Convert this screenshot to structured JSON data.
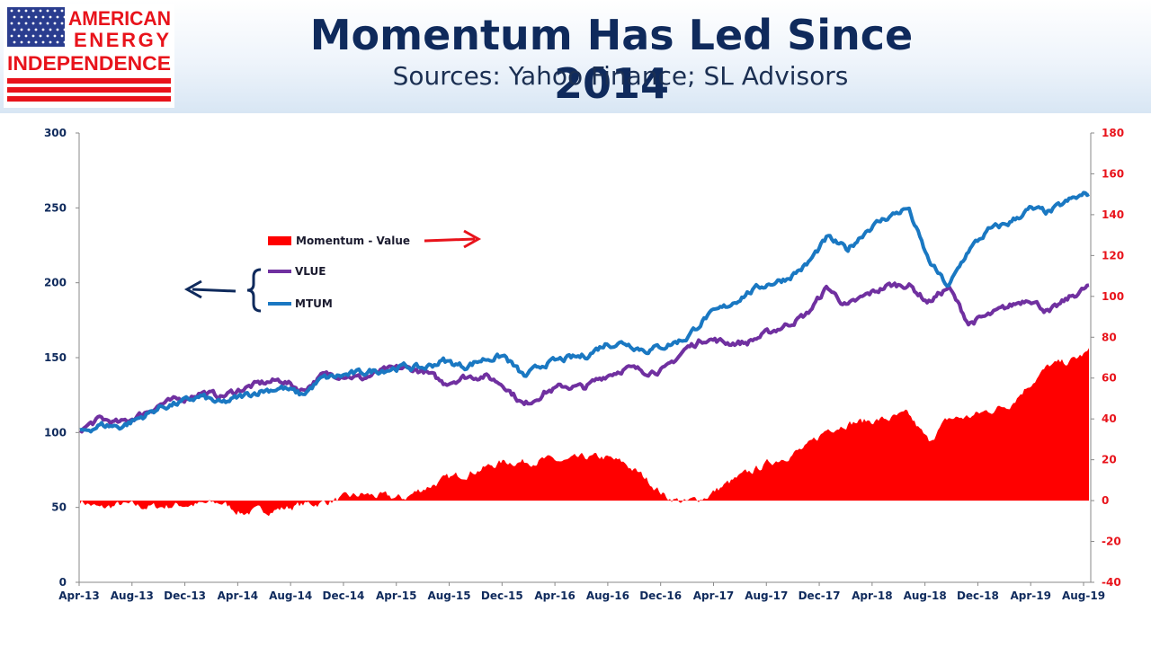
{
  "header": {
    "logo_text": [
      "AMERICAN",
      "ENERGY",
      "INDEPENDENCE"
    ],
    "title": "Momentum Has Led Since 2014",
    "subtitle": "Sources: Yahoo Finance; SL Advisors"
  },
  "colors": {
    "title": "#0f2a5c",
    "axis_left": "#0f2a5c",
    "axis_right": "#e8131b",
    "vlue": "#7030a0",
    "mtum": "#1a78c2",
    "momentum_value": "#ff0000"
  },
  "chart_data": {
    "type": "line+area",
    "x_labels": [
      "Apr-13",
      "Aug-13",
      "Dec-13",
      "Apr-14",
      "Aug-14",
      "Dec-14",
      "Apr-15",
      "Aug-15",
      "Dec-15",
      "Apr-16",
      "Aug-16",
      "Dec-16",
      "Apr-17",
      "Aug-17",
      "Dec-17",
      "Apr-18",
      "Aug-18",
      "Dec-18",
      "Apr-19",
      "Aug-19"
    ],
    "y_left": {
      "min": 0,
      "max": 300,
      "ticks": [
        0,
        50,
        100,
        150,
        200,
        250,
        300
      ]
    },
    "y_right": {
      "min": -40,
      "max": 180,
      "ticks": [
        -40,
        -20,
        0,
        20,
        40,
        60,
        80,
        100,
        120,
        140,
        160,
        180
      ]
    },
    "legend": {
      "momentum_value": "Momentum - Value",
      "vlue": "VLUE",
      "mtum": "MTUM"
    },
    "series": [
      {
        "name": "VLUE",
        "axis": "left",
        "values": [
          102,
          109,
          106,
          112,
          119,
          122,
          127,
          124,
          129,
          133,
          135,
          128,
          138,
          139,
          136,
          141,
          143,
          141,
          133,
          137,
          138,
          132,
          118,
          127,
          131,
          130,
          138,
          143,
          141,
          142,
          156,
          163,
          160,
          160,
          166,
          172,
          179,
          197,
          184,
          192,
          198,
          199,
          187,
          197,
          173,
          178,
          184,
          190,
          180,
          190,
          198
        ]
      },
      {
        "name": "MTUM",
        "axis": "left",
        "values": [
          100,
          105,
          104,
          110,
          117,
          120,
          124,
          119,
          124,
          128,
          130,
          125,
          136,
          138,
          140,
          142,
          144,
          143,
          148,
          144,
          149,
          151,
          137,
          146,
          149,
          151,
          159,
          160,
          155,
          158,
          163,
          177,
          184,
          193,
          199,
          203,
          212,
          230,
          222,
          236,
          244,
          250,
          215,
          197,
          222,
          235,
          240,
          249,
          247,
          255,
          260
        ]
      },
      {
        "name": "Momentum - Value",
        "axis": "right",
        "values": [
          0,
          -4,
          -2,
          -3,
          -3,
          -2,
          -2,
          -1,
          -6,
          -5,
          -4,
          -2,
          -1,
          1,
          3,
          2,
          1,
          6,
          10,
          13,
          16,
          19,
          19,
          20,
          19,
          21,
          21,
          18,
          11,
          2,
          -1,
          2,
          8,
          13,
          18,
          22,
          26,
          35,
          38,
          39,
          40,
          42,
          29,
          40,
          41,
          44,
          47,
          57,
          66,
          68,
          73
        ]
      }
    ]
  }
}
